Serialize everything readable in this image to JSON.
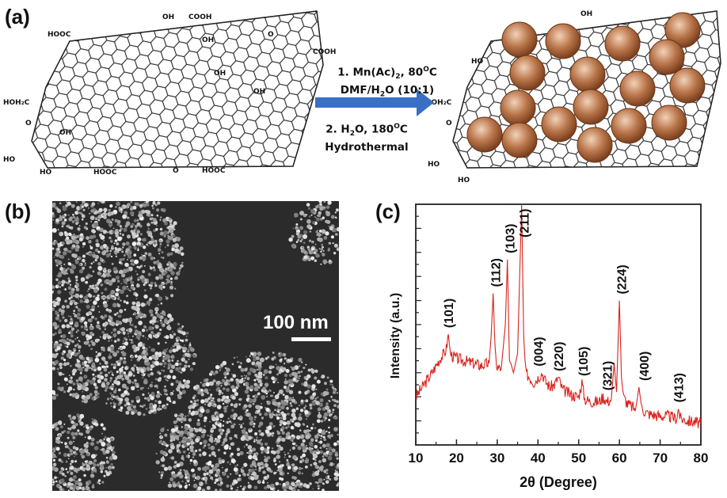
{
  "panels": {
    "a": "(a)",
    "b": "(b)",
    "c": "(c)"
  },
  "scheme": {
    "step1_line1": "1. Mn(Ac)",
    "step1_sub": "2",
    "step1_tail": ", 80",
    "step1_sup": "O",
    "step1_unit": "C",
    "step1_line2_pre": "DMF/H",
    "step1_line2_sub": "2",
    "step1_line2_post": "O (10:1)",
    "step2_pre": "2. H",
    "step2_sub": "2",
    "step2_mid": "O, 180",
    "step2_sup": "O",
    "step2_unit": "C",
    "step2_line2": "Hydrothermal",
    "groups": [
      "HOOC",
      "OH",
      "COOH",
      "OH",
      "COOH",
      "HOH₂C",
      "O",
      "OH",
      "HO",
      "HO",
      "HOOC",
      "O",
      "HOOC",
      "O",
      "HO",
      "HO",
      "HOH₂C",
      "O",
      "HO",
      "OH",
      "OH",
      "OH"
    ],
    "colors": {
      "arrow": "#3a6fc4",
      "particle": "#a8643c",
      "particle_light": "#f2d2b8"
    }
  },
  "sem": {
    "scale_label": "100 nm"
  },
  "chart_data": {
    "type": "line",
    "xlabel": "2θ (Degree)",
    "ylabel": "Intensity (a.u.)",
    "xlim": [
      10,
      80
    ],
    "xticks": [
      10,
      20,
      30,
      40,
      50,
      60,
      70,
      80
    ],
    "ylim": [
      0,
      100
    ],
    "grid": false,
    "series": [
      {
        "color": "#d9231c",
        "x": [
          10,
          12,
          14,
          15,
          16,
          17,
          17.5,
          18,
          18.5,
          19,
          20,
          22,
          24,
          26,
          28,
          28.5,
          29,
          29.5,
          30,
          31,
          32,
          32.5,
          33,
          34,
          35,
          36,
          36.5,
          37,
          38,
          39,
          40,
          41,
          42,
          43,
          44,
          45,
          46,
          48,
          50,
          50.8,
          51.5,
          53,
          55,
          56,
          57,
          58,
          58.7,
          59.3,
          60,
          60.5,
          61,
          62,
          63,
          64,
          64.8,
          65.5,
          67,
          70,
          72,
          74,
          74.5,
          75,
          77,
          80
        ],
        "values": [
          20,
          25,
          30,
          33,
          36,
          38,
          40,
          46,
          38,
          37,
          36,
          35,
          34,
          33,
          34,
          45,
          63,
          38,
          32,
          32,
          50,
          77,
          34,
          30,
          38,
          100,
          45,
          30,
          28,
          26,
          28,
          30,
          26,
          24,
          25,
          28,
          23,
          21,
          20,
          26,
          19,
          18,
          18,
          20,
          18,
          19,
          34,
          22,
          60,
          28,
          20,
          17,
          16,
          15,
          24,
          15,
          13,
          12,
          12,
          11,
          15,
          11,
          10,
          9
        ]
      }
    ],
    "annotations": [
      {
        "label": "(101)",
        "x": 18
      },
      {
        "label": "(112)",
        "x": 29.5
      },
      {
        "label": "(103)",
        "x": 33
      },
      {
        "label": "(211)",
        "x": 36.5
      },
      {
        "label": "(004)",
        "x": 40
      },
      {
        "label": "(220)",
        "x": 45
      },
      {
        "label": "(105)",
        "x": 51
      },
      {
        "label": "(321)",
        "x": 57
      },
      {
        "label": "(224)",
        "x": 60.5
      },
      {
        "label": "(400)",
        "x": 66
      },
      {
        "label": "(413)",
        "x": 74.5
      }
    ]
  }
}
